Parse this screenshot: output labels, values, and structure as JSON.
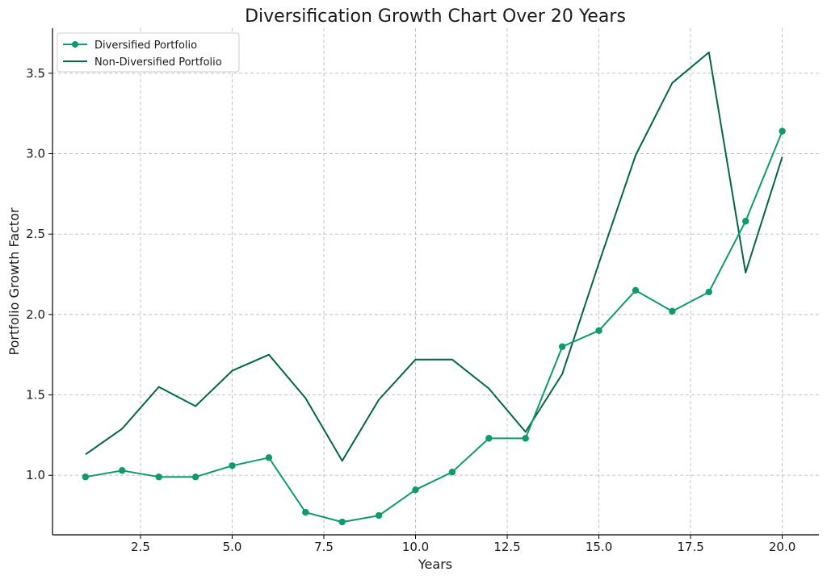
{
  "chart_data": {
    "type": "line",
    "title": "Diversification Growth Chart Over 20 Years",
    "xlabel": "Years",
    "ylabel": "Portfolio Growth Factor",
    "xlim": [
      0.1,
      21.0
    ],
    "ylim": [
      0.63,
      3.78
    ],
    "xticks": [
      2.5,
      5.0,
      7.5,
      10.0,
      12.5,
      15.0,
      17.5,
      20.0
    ],
    "xtick_labels": [
      "2.5",
      "5.0",
      "7.5",
      "10.0",
      "12.5",
      "15.0",
      "17.5",
      "20.0"
    ],
    "yticks": [
      1.0,
      1.5,
      2.0,
      2.5,
      3.0,
      3.5
    ],
    "ytick_labels": [
      "1.0",
      "1.5",
      "2.0",
      "2.5",
      "3.0",
      "3.5"
    ],
    "grid": true,
    "legend_position": "top-left",
    "x": [
      1,
      2,
      3,
      4,
      5,
      6,
      7,
      8,
      9,
      10,
      11,
      12,
      13,
      14,
      15,
      16,
      17,
      18,
      19,
      20
    ],
    "series": [
      {
        "name": "Diversified Portfolio",
        "color": "#0e9a6e",
        "marker": true,
        "values": [
          0.99,
          1.03,
          0.99,
          0.99,
          1.06,
          1.11,
          0.77,
          0.71,
          0.75,
          0.91,
          1.02,
          1.23,
          1.23,
          1.8,
          1.9,
          2.15,
          2.02,
          2.14,
          2.58,
          3.14
        ]
      },
      {
        "name": "Non-Diversified Portfolio",
        "color": "#046644",
        "marker": false,
        "values": [
          1.13,
          1.29,
          1.55,
          1.43,
          1.65,
          1.75,
          1.48,
          1.09,
          1.47,
          1.72,
          1.72,
          1.54,
          1.27,
          1.63,
          2.32,
          2.99,
          3.44,
          3.63,
          2.26,
          2.98
        ]
      }
    ]
  }
}
